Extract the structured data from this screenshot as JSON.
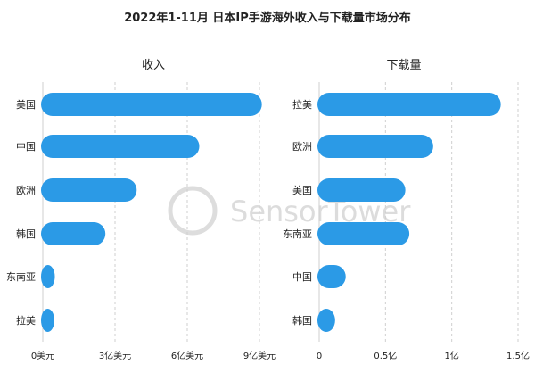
{
  "title": "2022年1-11月 日本IP手游海外收入与下载量市场分布",
  "watermark": "SensorTower",
  "colors": {
    "bar": "#2b9ae6",
    "grid": "#cfcfcf",
    "text": "#222222",
    "watermark": "#d9d9d9"
  },
  "chart_data": [
    {
      "type": "bar",
      "orientation": "horizontal",
      "title": "收入",
      "categories": [
        "美国",
        "中国",
        "欧洲",
        "韩国",
        "东南亚",
        "拉美"
      ],
      "values": [
        9.1,
        6.5,
        3.9,
        2.6,
        0.5,
        0.35
      ],
      "xlim": [
        0,
        9
      ],
      "ticks": [
        0,
        3,
        6,
        9
      ],
      "tick_labels": [
        "0美元",
        "3亿美元",
        "6亿美元",
        "9亿美元"
      ],
      "grid": "vertical dashed"
    },
    {
      "type": "bar",
      "orientation": "horizontal",
      "title": "下载量",
      "categories": [
        "拉美",
        "欧洲",
        "美国",
        "东南亚",
        "中国",
        "韩国"
      ],
      "values": [
        1.37,
        0.86,
        0.65,
        0.68,
        0.2,
        0.12
      ],
      "xlim": [
        0,
        1.5
      ],
      "ticks": [
        0,
        0.5,
        1,
        1.5
      ],
      "tick_labels": [
        "0",
        "0.5亿",
        "1亿",
        "1.5亿"
      ],
      "grid": "vertical dashed"
    }
  ]
}
